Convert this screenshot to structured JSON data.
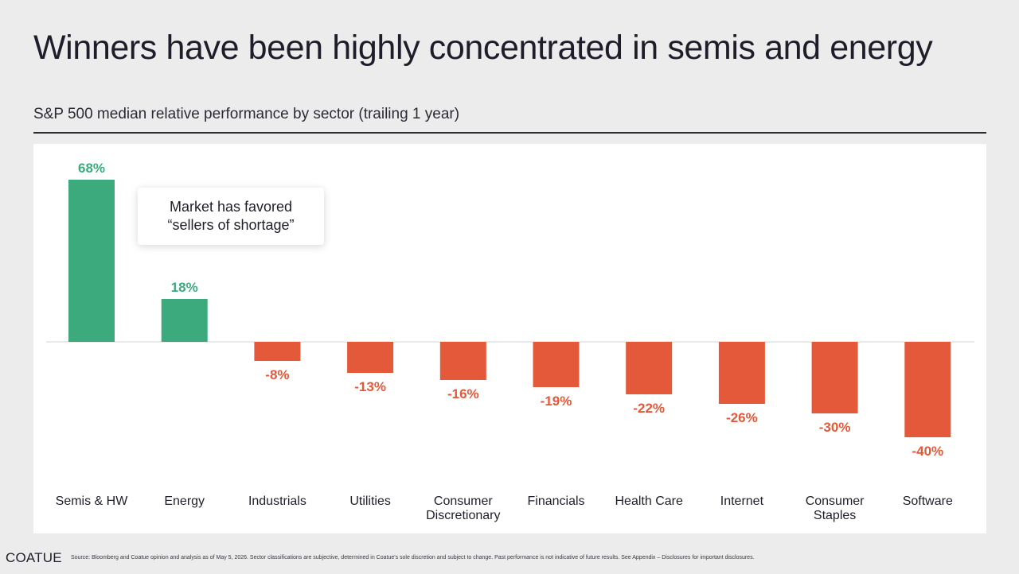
{
  "header": {
    "title": "Winners have been highly concentrated in semis and energy",
    "subtitle": "S&P 500 median relative performance by sector (trailing 1 year)"
  },
  "callout": {
    "text": "Market has favored\n“sellers of shortage”"
  },
  "footer": {
    "logo": "COATUE",
    "source": "Source: Bloomberg and Coatue opinion and analysis as of May 5, 2026. Sector classifications are subjective, determined in Coatue's sole discretion and subject to change. Past performance is not indicative of future results. See Appendix – Disclosures for important disclosures."
  },
  "colors": {
    "positive": "#3daa7e",
    "negative": "#e3593a",
    "baseline": "#d6d6d6"
  },
  "chart_data": {
    "type": "bar",
    "categories": [
      "Semis & HW",
      "Energy",
      "Industrials",
      "Utilities",
      "Consumer Discretionary",
      "Financials",
      "Health Care",
      "Internet",
      "Consumer Staples",
      "Software"
    ],
    "category_lines": [
      [
        "Semis & HW"
      ],
      [
        "Energy"
      ],
      [
        "Industrials"
      ],
      [
        "Utilities"
      ],
      [
        "Consumer",
        "Discretionary"
      ],
      [
        "Financials"
      ],
      [
        "Health Care"
      ],
      [
        "Internet"
      ],
      [
        "Consumer",
        "Staples"
      ],
      [
        "Software"
      ]
    ],
    "values": [
      68,
      18,
      -8,
      -13,
      -16,
      -19,
      -22,
      -26,
      -30,
      -40
    ],
    "data_labels": [
      "68%",
      "18%",
      "-8%",
      "-13%",
      "-16%",
      "-19%",
      "-22%",
      "-26%",
      "-30%",
      "-40%"
    ],
    "unit": "%",
    "ylim": [
      -40,
      68
    ],
    "grid": false,
    "legend": "none"
  }
}
